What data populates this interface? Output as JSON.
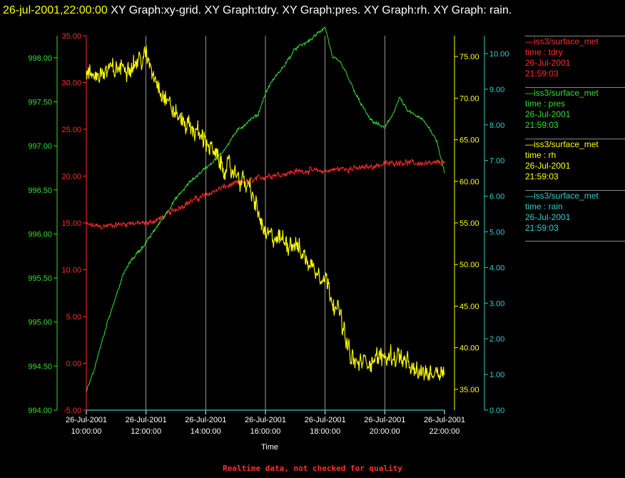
{
  "header": {
    "timestamp": "26-jul-2001,22:00:00",
    "titles": "XY Graph:xy-grid.  XY Graph:tdry.  XY Graph:pres.  XY Graph:rh.  XY Graph: rain."
  },
  "footer": {
    "note": "Realtime data, not checked for quality"
  },
  "colors": {
    "tdry": "#ff2a2a",
    "pres": "#33dd33",
    "rh": "#ffff00",
    "rain": "#33cccc",
    "grid": "#ffffff"
  },
  "legend": [
    {
      "source": "iss3/surface_met",
      "field": "time : tdry",
      "date": "26-Jul-2001",
      "time": "21:59:03",
      "color": "#ff2a2a"
    },
    {
      "source": "iss3/surface_met",
      "field": "time : pres",
      "date": "26-Jul-2001",
      "time": "21:59:03",
      "color": "#33dd33"
    },
    {
      "source": "iss3/surface_met",
      "field": "time : rh",
      "date": "26-Jul-2001",
      "time": "21:59:03",
      "color": "#ffff00"
    },
    {
      "source": "iss3/surface_met",
      "field": "time : rain",
      "date": "26-Jul-2001",
      "time": "21:59:03",
      "color": "#33cccc"
    }
  ],
  "chart_data": {
    "type": "line",
    "xlabel": "Time",
    "x_ticks": [
      {
        "date": "26-Jul-2001",
        "time": "10:00:00"
      },
      {
        "date": "26-Jul-2001",
        "time": "12:00:00"
      },
      {
        "date": "26-Jul-2001",
        "time": "14:00:00"
      },
      {
        "date": "26-Jul-2001",
        "time": "16:00:00"
      },
      {
        "date": "26-Jul-2001",
        "time": "18:00:00"
      },
      {
        "date": "26-Jul-2001",
        "time": "20:00:00"
      },
      {
        "date": "26-Jul-2001",
        "time": "22:00:00"
      }
    ],
    "x_hours": [
      10,
      12,
      14,
      16,
      18,
      20,
      22
    ],
    "xlim": [
      10,
      22
    ],
    "grid": "vertical",
    "legend_position": "right",
    "axes": {
      "tdry": {
        "ylim": [
          -5,
          35
        ],
        "ticks": [
          "-5.00",
          "0.00",
          "5.00",
          "10.00",
          "15.00",
          "20.00",
          "25.00",
          "30.00",
          "35.00"
        ]
      },
      "pres": {
        "ylim": [
          994,
          998.25
        ],
        "ticks": [
          "994.00",
          "994.50",
          "995.00",
          "995.50",
          "996.00",
          "996.50",
          "997.00",
          "997.50",
          "998.00"
        ]
      },
      "rh": {
        "ylim": [
          32.5,
          77.5
        ],
        "ticks": [
          "35.00",
          "40.00",
          "45.00",
          "50.00",
          "55.00",
          "60.00",
          "65.00",
          "70.00",
          "75.00"
        ]
      },
      "rain": {
        "ylim": [
          0,
          10.5
        ],
        "ticks": [
          "0.00",
          "1.00",
          "2.00",
          "3.00",
          "4.00",
          "5.00",
          "6.00",
          "7.00",
          "8.00",
          "9.00",
          "10.00"
        ]
      }
    },
    "series": [
      {
        "name": "tdry",
        "axis": "tdry",
        "noise": 0.4,
        "x": [
          10,
          10.5,
          11,
          11.5,
          12,
          12.5,
          13,
          13.5,
          14,
          14.5,
          15,
          15.5,
          16,
          16.5,
          17,
          17.5,
          18,
          18.5,
          19,
          19.5,
          20,
          20.5,
          21,
          21.5,
          22
        ],
        "values": [
          14.8,
          14.6,
          14.8,
          15.0,
          14.9,
          15.5,
          16.5,
          17.3,
          18.0,
          18.7,
          19.2,
          19.5,
          20.0,
          20.2,
          20.5,
          20.6,
          20.5,
          20.8,
          20.8,
          21.0,
          21.3,
          21.5,
          21.4,
          21.3,
          21.5
        ]
      },
      {
        "name": "pres",
        "axis": "pres",
        "noise": 0.025,
        "x": [
          10,
          10.25,
          10.5,
          10.75,
          11,
          11.25,
          11.5,
          11.75,
          12,
          12.5,
          13,
          13.5,
          14,
          14.5,
          15,
          15.5,
          15.75,
          16,
          16.25,
          16.5,
          17,
          17.5,
          18,
          18.25,
          18.5,
          18.75,
          19,
          19.25,
          19.5,
          19.75,
          20,
          20.25,
          20.5,
          20.75,
          21,
          21.25,
          21.5,
          21.75,
          22
        ],
        "values": [
          994.2,
          994.45,
          994.75,
          995.05,
          995.3,
          995.55,
          995.7,
          995.8,
          995.9,
          996.15,
          996.4,
          996.6,
          996.75,
          996.9,
          997.15,
          997.3,
          997.35,
          997.6,
          997.75,
          997.85,
          998.1,
          998.2,
          998.35,
          998.0,
          997.95,
          997.8,
          997.6,
          997.45,
          997.3,
          997.25,
          997.2,
          997.35,
          997.55,
          997.4,
          997.35,
          997.3,
          997.2,
          997.05,
          996.7
        ]
      },
      {
        "name": "rh",
        "axis": "rh",
        "noise": 1.6,
        "x": [
          10,
          10.5,
          11,
          11.5,
          12,
          12.25,
          12.5,
          13,
          13.5,
          14,
          14.5,
          15,
          15.25,
          15.5,
          16,
          16.5,
          17,
          17.5,
          18,
          18.25,
          18.5,
          18.75,
          19,
          19.5,
          20,
          20.5,
          21,
          21.5,
          22
        ],
        "values": [
          72.5,
          73.0,
          73.5,
          74.0,
          75.0,
          73.0,
          71.0,
          68.0,
          66.5,
          65.0,
          62.0,
          61.0,
          60.0,
          59.0,
          53.5,
          53.0,
          52.5,
          50.0,
          48.5,
          46.0,
          44.0,
          40.0,
          38.0,
          38.5,
          39.0,
          39.0,
          37.0,
          37.0,
          37.5
        ]
      },
      {
        "name": "rain",
        "axis": "rain",
        "noise": 0,
        "x": [
          10,
          22
        ],
        "values": [
          0,
          0
        ]
      }
    ]
  }
}
